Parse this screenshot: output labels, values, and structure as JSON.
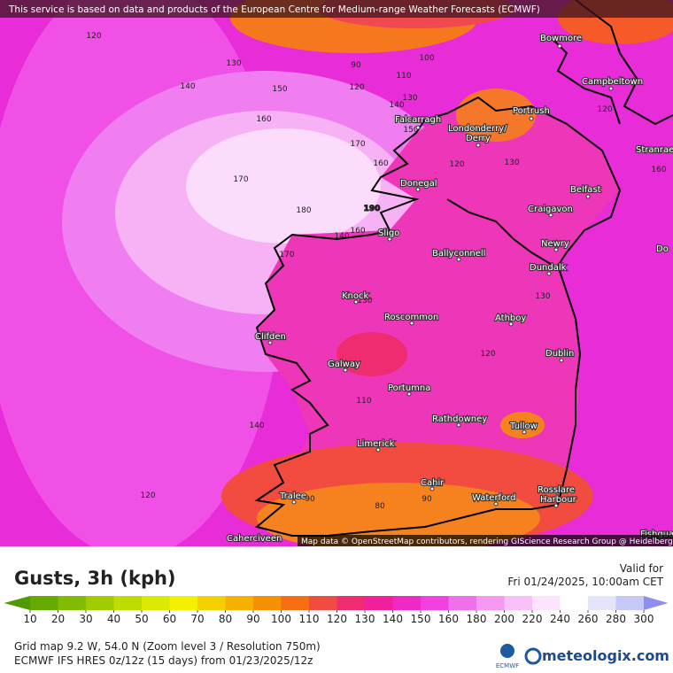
{
  "header": {
    "notice": "This service is based on data and products of the European Centre for Medium-range Weather Forecasts (ECMWF)"
  },
  "map": {
    "places": [
      "Bowmore",
      "Campbeltown",
      "Portrush",
      "Falcarragh",
      "Londonderry/",
      "Derry",
      "Stranrae",
      "Donegal",
      "Belfast",
      "Craigavon",
      "Newry",
      "Sligo",
      "Ballyconnell",
      "Dundalk",
      "Knock",
      "Roscommon",
      "Athboy",
      "Clifden",
      "Dublin",
      "Galway",
      "Portumna",
      "Rathdowney",
      "Tullow",
      "Limerick",
      "Cahir",
      "Tralee",
      "Waterford",
      "Rosslare",
      "Harbour",
      "Caherciveen",
      "Fishgua",
      "Do"
    ],
    "contour_labels": [
      "120",
      "130",
      "140",
      "150",
      "160",
      "90",
      "100",
      "110",
      "120",
      "130",
      "140",
      "150",
      "170",
      "160",
      "170",
      "180",
      "190",
      "140",
      "160",
      "170",
      "130",
      "120",
      "130",
      "120",
      "120",
      "110",
      "140",
      "120",
      "90",
      "80",
      "90",
      "130",
      "160"
    ],
    "attribution": "Map data © OpenStreetMap contributors, rendering GIScience Research Group @ Heidelberg University"
  },
  "legend": {
    "title": "Gusts, 3h (kph)",
    "valid_label": "Valid for",
    "valid_time": "Fri 01/24/2025, 10:00am CET",
    "ticks": [
      10,
      20,
      30,
      40,
      50,
      60,
      70,
      80,
      90,
      100,
      110,
      120,
      130,
      140,
      150,
      160,
      180,
      200,
      220,
      240,
      260,
      280,
      300
    ],
    "colors": [
      "#4f9a00",
      "#66aa00",
      "#82bc00",
      "#a0cc00",
      "#bedc00",
      "#dcea00",
      "#f5f000",
      "#f5d000",
      "#f5b000",
      "#f59000",
      "#f56e14",
      "#f24c40",
      "#f02c70",
      "#f0209c",
      "#f028c4",
      "#f040e0",
      "#f070ec",
      "#f498f2",
      "#f8c0f8",
      "#fce4fc",
      "#ffffff",
      "#e4e4fa",
      "#c8c8f8",
      "#acacf4",
      "#8e8ef0"
    ]
  },
  "footer": {
    "grid": "Grid map 9.2 W, 54.0 N (Zoom level 3 / Resolution 750m)",
    "model": "ECMWF IFS HRES 0z/12z (15 days) from 01/23/2025/12z"
  },
  "logos": {
    "ecmwf": "ECMWF",
    "brand": "meteologix.com"
  }
}
